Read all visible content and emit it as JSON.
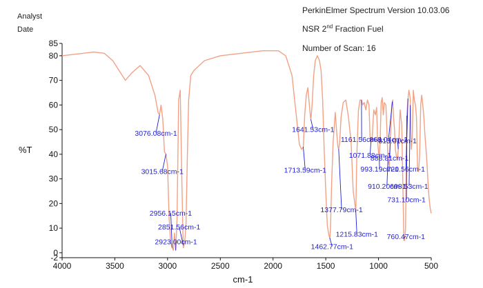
{
  "header": {
    "analyst": "Analyst",
    "date": "Date",
    "software": "PerkinElmer Spectrum Version 10.03.06",
    "sample_prefix": "NSR 2",
    "sample_sup": "nd",
    "sample_suffix": " Fraction Fuel",
    "scans": "Number of Scan: 16"
  },
  "colors": {
    "trace": "#f2a184",
    "annotation": "#1d1dd6",
    "axis": "#111111"
  },
  "chart_data": {
    "type": "line",
    "xlabel": "cm-1",
    "ylabel": "%T",
    "xlim": [
      4000,
      500
    ],
    "ylim": [
      -2,
      85
    ],
    "xticks": [
      4000,
      3500,
      3000,
      2500,
      2000,
      1500,
      1000,
      500
    ],
    "yticks": [
      -2,
      0,
      10,
      20,
      30,
      40,
      50,
      60,
      70,
      80,
      85
    ],
    "grid": false,
    "series": [
      {
        "values_x": [
          4000,
          3800,
          3700,
          3600,
          3520,
          3460,
          3400,
          3340,
          3260,
          3180,
          3120,
          3090,
          3076,
          3062,
          3045,
          3030,
          3015,
          3000,
          2985,
          2970,
          2956,
          2945,
          2935,
          2923,
          2910,
          2895,
          2880,
          2865,
          2851,
          2838,
          2825,
          2812,
          2800,
          2780,
          2750,
          2650,
          2500,
          2300,
          2100,
          1950,
          1880,
          1820,
          1780,
          1750,
          1730,
          1713,
          1700,
          1685,
          1670,
          1660,
          1645,
          1641,
          1630,
          1615,
          1600,
          1580,
          1560,
          1545,
          1530,
          1515,
          1500,
          1485,
          1470,
          1462,
          1455,
          1445,
          1430,
          1410,
          1395,
          1385,
          1377,
          1368,
          1355,
          1335,
          1310,
          1285,
          1260,
          1240,
          1225,
          1215,
          1205,
          1190,
          1175,
          1161,
          1150,
          1135,
          1120,
          1105,
          1090,
          1080,
          1071,
          1060,
          1045,
          1030,
          1018,
          1008,
          998,
          993,
          985,
          975,
          965,
          955,
          945,
          930,
          910,
          898,
          888,
          875,
          865,
          858,
          848,
          840,
          830,
          820,
          808,
          795,
          780,
          770,
          760,
          752,
          744,
          731,
          722,
          712,
          700,
          690,
          680,
          670,
          660,
          650,
          640,
          630,
          620,
          610,
          600,
          590,
          580,
          570,
          560,
          550,
          540,
          530,
          520,
          510,
          500
        ],
        "values_y": [
          80,
          81,
          81.5,
          81,
          78,
          74,
          70,
          73,
          76,
          72,
          64,
          57,
          56,
          60,
          54,
          41,
          40,
          35,
          14,
          4,
          2,
          1,
          8,
          1,
          14,
          62,
          66,
          30,
          2,
          4,
          12,
          40,
          62,
          72,
          74,
          78,
          80,
          81,
          82,
          82,
          80,
          72,
          56,
          44,
          42,
          43,
          56,
          64,
          67,
          62,
          55,
          54,
          60,
          72,
          78,
          80,
          78,
          74,
          62,
          42,
          25,
          11,
          7,
          6,
          10,
          28,
          45,
          57,
          48,
          43,
          42,
          45,
          55,
          61,
          62,
          55,
          45,
          25,
          20,
          17,
          40,
          58,
          62,
          62,
          60,
          61,
          58,
          62,
          60,
          47,
          45,
          47,
          58,
          56,
          59,
          45,
          40,
          39,
          45,
          61,
          63,
          56,
          61,
          60,
          38,
          35,
          46,
          60,
          62,
          55,
          50,
          42,
          39,
          38,
          45,
          58,
          52,
          30,
          5,
          5,
          10,
          56,
          62,
          66,
          63,
          42,
          47,
          66,
          62,
          60,
          55,
          35,
          33,
          40,
          60,
          64,
          60,
          55,
          48,
          42,
          36,
          28,
          22,
          18,
          16
        ]
      }
    ],
    "annotations": [
      {
        "label": "3076.08cm-1",
        "x": 3076.08,
        "lx": 3110,
        "ly": 47.5
      },
      {
        "label": "3015.68cm-1",
        "x": 3015.68,
        "lx": 3050,
        "ly": 32
      },
      {
        "label": "2956.15cm-1",
        "x": 2956.15,
        "lx": 2970,
        "ly": 15
      },
      {
        "label": "2851.56cm-1",
        "x": 2851.56,
        "lx": 2890,
        "ly": 9.5
      },
      {
        "label": "2923.00cm-1",
        "x": 2923.0,
        "lx": 2920,
        "ly": 3.5
      },
      {
        "label": "1641.53cm-1",
        "x": 1641.53,
        "lx": 1620,
        "ly": 49
      },
      {
        "label": "1713.59cm-1",
        "x": 1713.59,
        "lx": 1695,
        "ly": 32.5
      },
      {
        "label": "1377.79cm-1",
        "x": 1377.79,
        "lx": 1350,
        "ly": 16.5
      },
      {
        "label": "1462.77cm-1",
        "x": 1462.77,
        "lx": 1440,
        "ly": 1.5
      },
      {
        "label": "1215.83cm-1",
        "x": 1215.83,
        "lx": 1205,
        "ly": 6.5
      },
      {
        "label": "1161.56cm-1",
        "x": 1161.56,
        "lx": 1160,
        "ly": 45
      },
      {
        "label": "1071.88cm-1",
        "x": 1071.88,
        "lx": 1080,
        "ly": 38.5
      },
      {
        "label": "993.19cm-1",
        "x": 993.19,
        "lx": 990,
        "ly": 33
      },
      {
        "label": "910.20cm-1",
        "x": 910.2,
        "lx": 920,
        "ly": 26
      },
      {
        "label": "868.04cm-1",
        "x": 868.04,
        "lx": 905,
        "ly": 45
      },
      {
        "label": "888.81cm-1",
        "x": 888.81,
        "lx": 895,
        "ly": 37.5
      },
      {
        "label": "813.01cm-1",
        "x": 813.01,
        "lx": 820,
        "ly": 44.5
      },
      {
        "label": "720.56cm-1",
        "x": 720.56,
        "lx": 740,
        "ly": 33
      },
      {
        "label": "698.53cm-1",
        "x": 698.53,
        "lx": 710,
        "ly": 26
      },
      {
        "label": "731.10cm-1",
        "x": 731.1,
        "lx": 735,
        "ly": 20.5
      },
      {
        "label": "760.47cm-1",
        "x": 760.47,
        "lx": 740,
        "ly": 5.5
      }
    ]
  }
}
